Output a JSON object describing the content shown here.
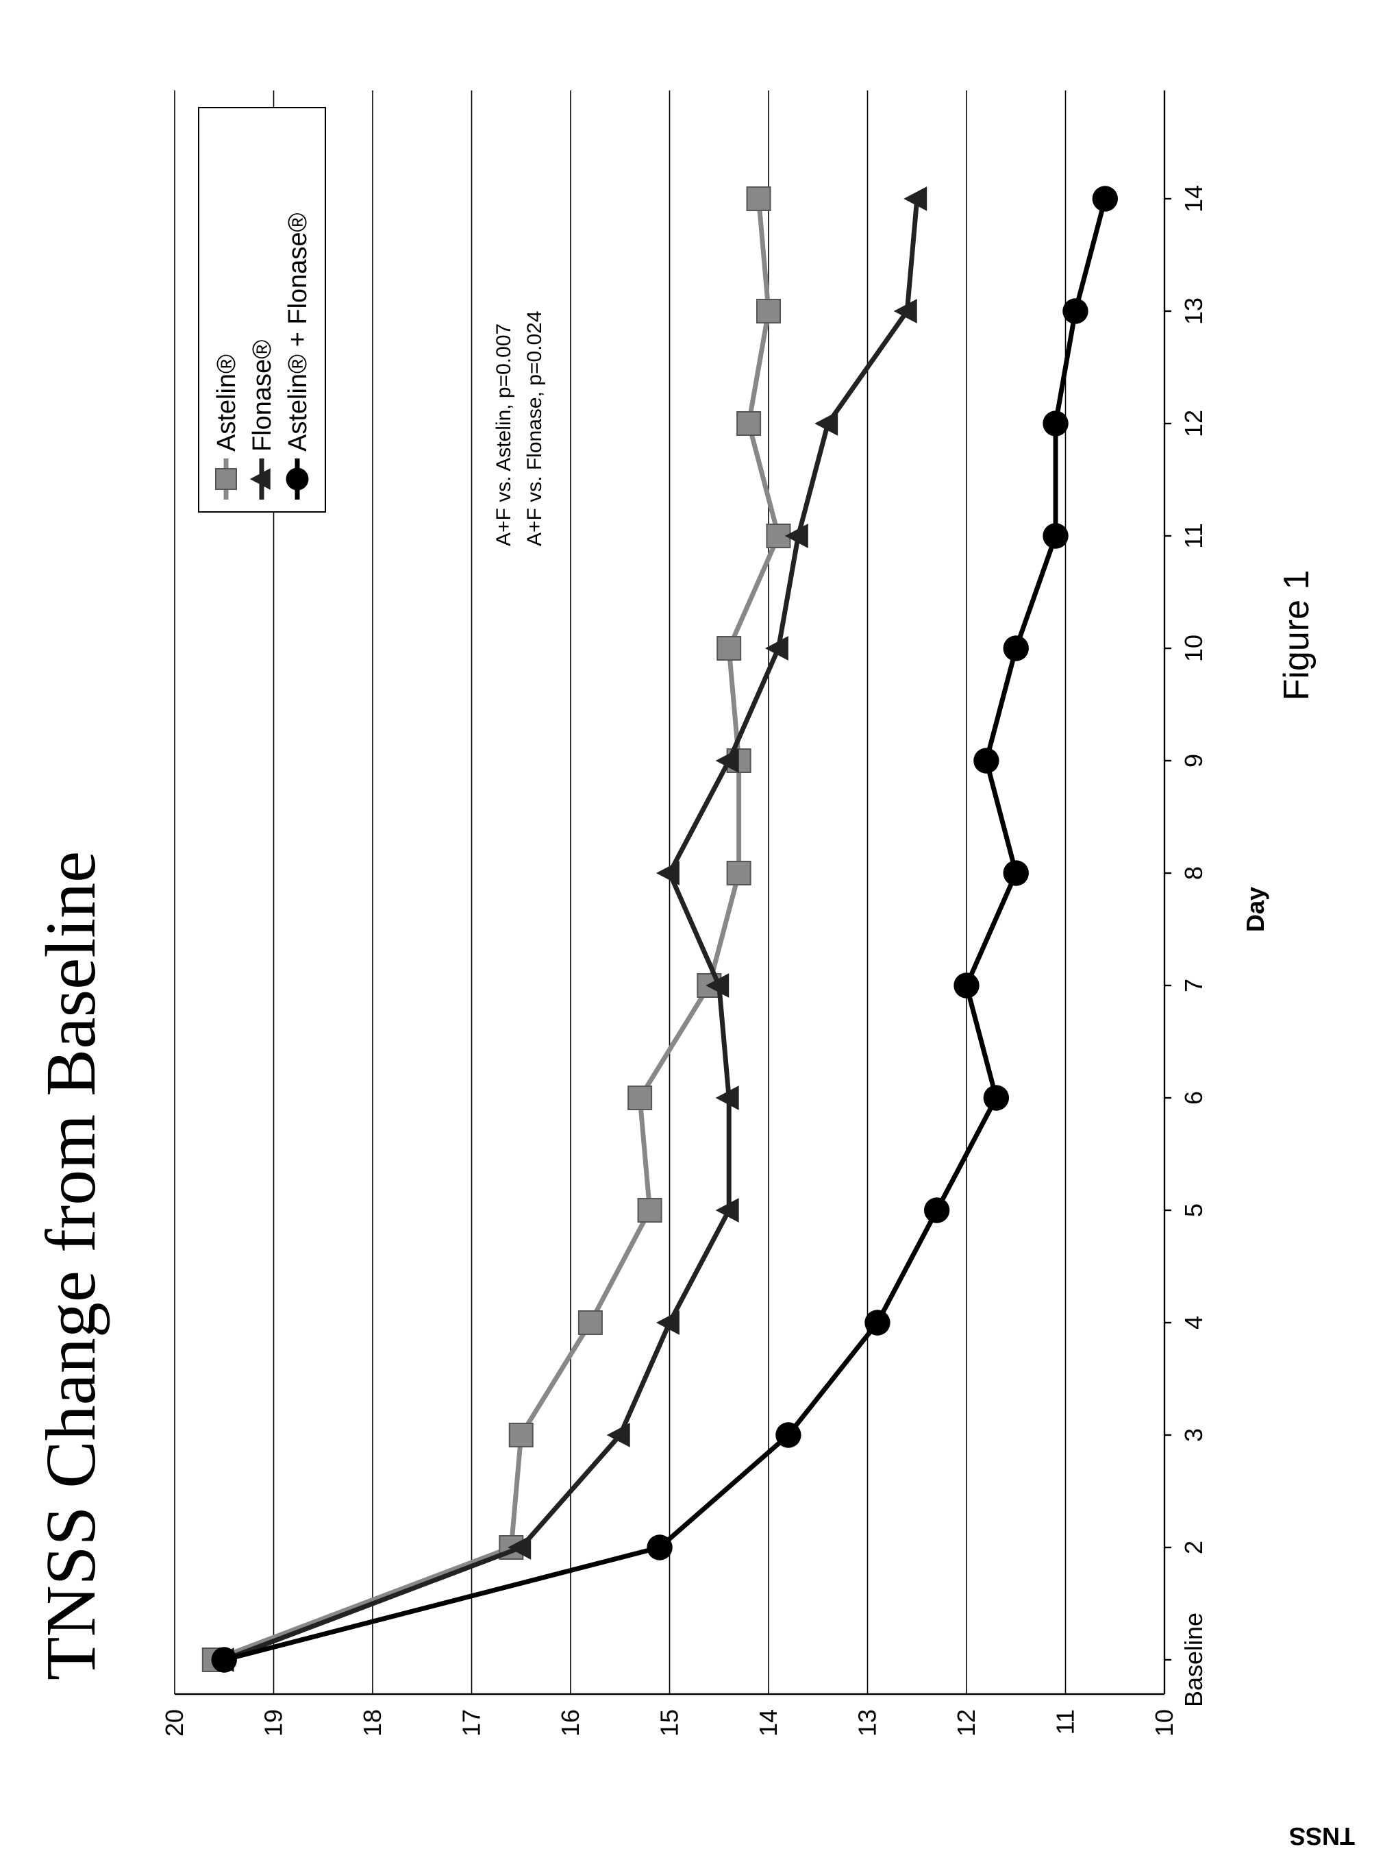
{
  "chart_data": {
    "type": "line",
    "title": "TNSS Change from Baseline",
    "xlabel": "Day",
    "ylabel": "TNSS",
    "figure_label": "Figure 1",
    "categories": [
      "Baseline",
      "2",
      "3",
      "4",
      "5",
      "6",
      "7",
      "8",
      "9",
      "10",
      "11",
      "12",
      "13",
      "14"
    ],
    "ylim": [
      10,
      20
    ],
    "yticks": [
      20,
      19,
      18,
      17,
      16,
      15,
      14,
      13,
      12,
      11,
      10
    ],
    "grid": true,
    "legend_position": "top-right",
    "series": [
      {
        "name": "Astelin®",
        "marker": "square",
        "color": "#888888",
        "values": [
          19.6,
          16.6,
          16.5,
          15.8,
          15.2,
          15.3,
          14.6,
          14.3,
          14.3,
          14.4,
          13.9,
          14.2,
          14.0,
          14.1
        ]
      },
      {
        "name": "Flonase®",
        "marker": "triangle",
        "color": "#222222",
        "values": [
          19.5,
          16.5,
          15.5,
          15.0,
          14.4,
          14.4,
          14.5,
          15.0,
          14.4,
          13.9,
          13.7,
          13.4,
          12.6,
          12.5
        ]
      },
      {
        "name": "Astelin® + Flonase®",
        "marker": "circle",
        "color": "#000000",
        "values": [
          19.5,
          15.1,
          13.8,
          12.9,
          12.3,
          11.7,
          12.0,
          11.5,
          11.8,
          11.5,
          11.1,
          11.1,
          10.9,
          10.6
        ]
      }
    ],
    "annotations": [
      "A+F vs. Astelin, p=0.007",
      "A+F vs. Flonase, p=0.024"
    ]
  }
}
